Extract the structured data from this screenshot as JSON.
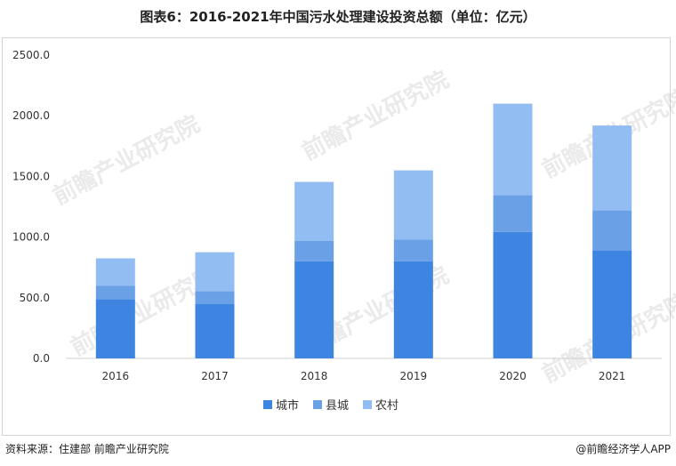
{
  "title": "图表6：2016-2021年中国污水处理建设投资总额（单位：亿元）",
  "source": "资料来源：住建部 前瞻产业研究院",
  "credit": "@前瞻经济学人APP",
  "watermark": "前瞻产业研究院",
  "chart_data": {
    "type": "bar",
    "stacked": true,
    "categories": [
      "2016",
      "2017",
      "2018",
      "2019",
      "2020",
      "2021"
    ],
    "series": [
      {
        "name": "城市",
        "color": "#3d85e0",
        "values": [
          487,
          450,
          800,
          800,
          1043,
          890
        ]
      },
      {
        "name": "县城",
        "color": "#6aa1e6",
        "values": [
          113,
          105,
          170,
          180,
          302,
          330
        ]
      },
      {
        "name": "农村",
        "color": "#92bdf2",
        "values": [
          225,
          320,
          485,
          570,
          755,
          700
        ]
      }
    ],
    "yticks": [
      "0.0",
      "500.0",
      "1000.0",
      "1500.0",
      "2000.0",
      "2500.0"
    ],
    "ylim": [
      0,
      2500
    ],
    "grid": false,
    "legend": "bottom"
  }
}
